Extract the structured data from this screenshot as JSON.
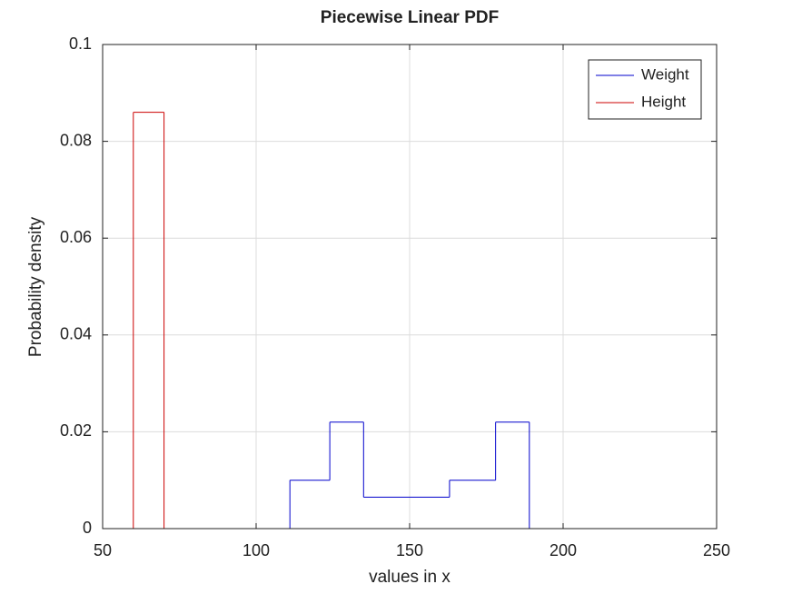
{
  "chart_data": {
    "type": "step",
    "title": "Piecewise Linear PDF",
    "xlabel": "values in x",
    "ylabel": "Probability density",
    "x": [
      50,
      60,
      70,
      111,
      124,
      135,
      163,
      178,
      189,
      250
    ],
    "series": [
      {
        "name": "Weight",
        "color": "#0000cc",
        "values": [
          0,
          0,
          0,
          0.01,
          0.022,
          0.0065,
          0.01,
          0.022,
          0,
          0
        ]
      },
      {
        "name": "Height",
        "color": "#cc0000",
        "values": [
          0,
          0.086,
          0,
          0,
          0,
          0,
          0,
          0,
          0,
          0
        ]
      }
    ],
    "xlim": [
      50,
      250
    ],
    "xticks": [
      50,
      100,
      150,
      200,
      250
    ],
    "ylim": [
      0,
      0.1
    ],
    "yticks": [
      0,
      0.02,
      0.04,
      0.06,
      0.08,
      0.1
    ],
    "grid": true,
    "legend": "top-right"
  }
}
